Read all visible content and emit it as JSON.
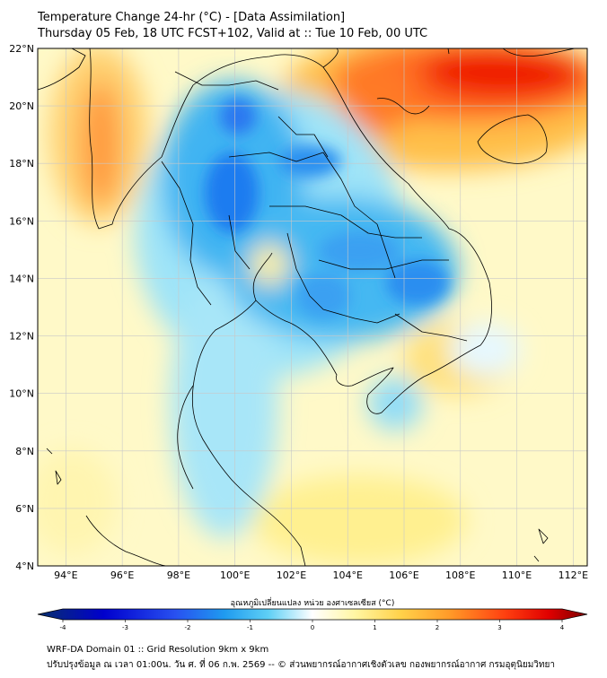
{
  "title": {
    "line1": "Temperature Change 24-hr (°C) - [Data Assimilation]",
    "line2": "Thursday 05 Feb, 18 UTC FCST+102, Valid at :: Tue 10 Feb, 00 UTC"
  },
  "map": {
    "lon_range": [
      93,
      112.5
    ],
    "lat_range": [
      4,
      22
    ],
    "lat_ticks": [
      "22°N",
      "20°N",
      "18°N",
      "16°N",
      "14°N",
      "12°N",
      "10°N",
      "8°N",
      "6°N",
      "4°N"
    ],
    "lon_ticks": [
      "94°E",
      "96°E",
      "98°E",
      "100°E",
      "102°E",
      "104°E",
      "106°E",
      "108°E",
      "110°E",
      "112°E"
    ],
    "grid": true
  },
  "colorbar": {
    "label": "อุณหภูมิเปลี่ยนแปลง หน่วย องศาเซลเซียส (°C)",
    "min": -4,
    "max": 4,
    "ticks": [
      "-4",
      "-3",
      "-2",
      "-1",
      "0",
      "1",
      "2",
      "3",
      "4"
    ],
    "colors": [
      "#08306b",
      "#0000cd",
      "#2850f0",
      "#1f9bf0",
      "#5fd0f5",
      "#ffffff",
      "#fff5a0",
      "#ffd24a",
      "#ff9a28",
      "#ff4010",
      "#e00000",
      "#7a0000"
    ]
  },
  "footer": {
    "line1": "WRF-DA Domain 01 :: Grid Resolution 9km x 9km",
    "line2": "ปรับปรุงข้อมูล ณ เวลา 01:00น. วัน ศ. ที่ 06 ก.พ. 2569 -- © ส่วนพยากรณ์อากาศเชิงตัวเลข กองพยากรณ์อากาศ กรมอุตุนิยมวิทยา"
  }
}
